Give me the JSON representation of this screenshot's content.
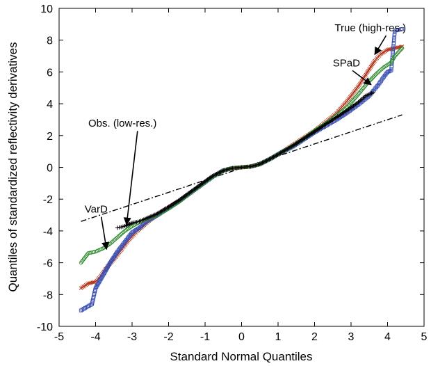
{
  "chart_data": {
    "type": "scatter",
    "title": "",
    "xlabel": "Standard Normal Quantiles",
    "ylabel": "Quantiles of standardized reflectivity derivatives",
    "xlim": [
      -5,
      5
    ],
    "ylim": [
      -10,
      10
    ],
    "xticks": [
      -5,
      -4,
      -3,
      -2,
      -1,
      0,
      1,
      2,
      3,
      4,
      5
    ],
    "yticks": [
      -10,
      -8,
      -6,
      -4,
      -2,
      0,
      2,
      4,
      6,
      8,
      10
    ],
    "grid": false,
    "legend": "none",
    "reference_line": {
      "style": "dash-dot",
      "color": "#000000",
      "points": [
        [
          -4.4,
          -3.4
        ],
        [
          4.4,
          3.3
        ]
      ]
    },
    "series": [
      {
        "name": "True (high-res.)",
        "marker": "x-line",
        "color": "#b5341a",
        "points": [
          [
            -4.4,
            -7.6
          ],
          [
            -4.2,
            -7.3
          ],
          [
            -4.0,
            -7.2
          ],
          [
            -3.85,
            -6.8
          ],
          [
            -3.7,
            -6.3
          ],
          [
            -3.5,
            -5.8
          ],
          [
            -3.3,
            -5.2
          ],
          [
            -3.1,
            -4.6
          ],
          [
            -2.9,
            -4.1
          ],
          [
            -2.7,
            -3.7
          ],
          [
            -2.5,
            -3.3
          ],
          [
            -2.3,
            -2.95
          ],
          [
            -2.0,
            -2.5
          ],
          [
            -1.7,
            -2.1
          ],
          [
            -1.4,
            -1.6
          ],
          [
            -1.1,
            -1.1
          ],
          [
            -0.8,
            -0.6
          ],
          [
            -0.5,
            -0.2
          ],
          [
            -0.25,
            -0.05
          ],
          [
            0,
            0
          ],
          [
            0.25,
            0.05
          ],
          [
            0.5,
            0.2
          ],
          [
            0.8,
            0.55
          ],
          [
            1.1,
            0.95
          ],
          [
            1.4,
            1.4
          ],
          [
            1.7,
            1.85
          ],
          [
            2.0,
            2.3
          ],
          [
            2.3,
            2.85
          ],
          [
            2.6,
            3.4
          ],
          [
            2.9,
            4.2
          ],
          [
            3.2,
            5.1
          ],
          [
            3.45,
            6.0
          ],
          [
            3.65,
            6.7
          ],
          [
            3.8,
            7.1
          ],
          [
            4.0,
            7.4
          ],
          [
            4.2,
            7.5
          ],
          [
            4.4,
            7.6
          ]
        ]
      },
      {
        "name": "",
        "marker": "square",
        "color": "#3a4fb0",
        "points": [
          [
            -4.4,
            -9.0
          ],
          [
            -4.1,
            -8.6
          ],
          [
            -4.0,
            -7.6
          ],
          [
            -3.8,
            -6.8
          ],
          [
            -3.6,
            -6.0
          ],
          [
            -3.4,
            -5.3
          ],
          [
            -3.2,
            -4.7
          ],
          [
            -3.0,
            -4.1
          ],
          [
            -2.8,
            -3.8
          ],
          [
            -2.6,
            -3.4
          ],
          [
            -2.3,
            -3.0
          ],
          [
            -2.0,
            -2.55
          ],
          [
            -1.7,
            -2.1
          ],
          [
            -1.4,
            -1.6
          ],
          [
            -1.1,
            -1.1
          ],
          [
            -0.8,
            -0.6
          ],
          [
            -0.5,
            -0.2
          ],
          [
            -0.25,
            -0.05
          ],
          [
            0,
            0
          ],
          [
            0.25,
            0.05
          ],
          [
            0.5,
            0.2
          ],
          [
            0.8,
            0.55
          ],
          [
            1.1,
            0.95
          ],
          [
            1.4,
            1.3
          ],
          [
            1.7,
            1.75
          ],
          [
            2.0,
            2.2
          ],
          [
            2.3,
            2.6
          ],
          [
            2.6,
            3.0
          ],
          [
            2.9,
            3.45
          ],
          [
            3.2,
            3.95
          ],
          [
            3.5,
            4.5
          ],
          [
            3.75,
            5.2
          ],
          [
            3.9,
            5.7
          ],
          [
            4.0,
            6.0
          ],
          [
            4.1,
            6.1
          ],
          [
            4.2,
            8.6
          ],
          [
            4.4,
            8.7
          ]
        ]
      },
      {
        "name": "SPaD",
        "marker": "circle",
        "color": "#2e8b2e",
        "points": [
          [
            -4.4,
            -6.0
          ],
          [
            -4.2,
            -5.4
          ],
          [
            -4.0,
            -5.3
          ],
          [
            -3.8,
            -5.1
          ],
          [
            -3.6,
            -4.8
          ],
          [
            -3.4,
            -4.4
          ],
          [
            -3.2,
            -4.0
          ],
          [
            -3.0,
            -3.7
          ],
          [
            -2.8,
            -3.45
          ],
          [
            -2.6,
            -3.25
          ],
          [
            -2.3,
            -3.0
          ],
          [
            -2.0,
            -2.6
          ],
          [
            -1.7,
            -2.15
          ],
          [
            -1.4,
            -1.6
          ],
          [
            -1.1,
            -1.1
          ],
          [
            -0.8,
            -0.6
          ],
          [
            -0.5,
            -0.2
          ],
          [
            -0.25,
            -0.05
          ],
          [
            0,
            0
          ],
          [
            0.25,
            0.05
          ],
          [
            0.5,
            0.2
          ],
          [
            0.8,
            0.55
          ],
          [
            1.1,
            0.95
          ],
          [
            1.4,
            1.35
          ],
          [
            1.7,
            1.8
          ],
          [
            2.0,
            2.3
          ],
          [
            2.3,
            2.75
          ],
          [
            2.6,
            3.25
          ],
          [
            2.9,
            3.8
          ],
          [
            3.2,
            4.6
          ],
          [
            3.45,
            5.3
          ],
          [
            3.7,
            5.9
          ],
          [
            3.9,
            6.3
          ],
          [
            4.1,
            6.6
          ],
          [
            4.2,
            7.0
          ],
          [
            4.4,
            7.5
          ]
        ]
      },
      {
        "name": "",
        "marker": "plus",
        "color": "#000000",
        "points": [
          [
            -3.4,
            -3.8
          ],
          [
            -3.3,
            -3.75
          ],
          [
            -3.2,
            -3.7
          ],
          [
            -3.1,
            -3.6
          ],
          [
            -3.0,
            -3.5
          ],
          [
            -2.8,
            -3.4
          ],
          [
            -2.6,
            -3.2
          ],
          [
            -2.3,
            -2.9
          ],
          [
            -2.0,
            -2.5
          ],
          [
            -1.7,
            -2.05
          ],
          [
            -1.4,
            -1.55
          ],
          [
            -1.1,
            -1.05
          ],
          [
            -0.8,
            -0.55
          ],
          [
            -0.5,
            -0.2
          ],
          [
            -0.25,
            -0.05
          ],
          [
            0,
            0
          ],
          [
            0.25,
            0.05
          ],
          [
            0.5,
            0.2
          ],
          [
            0.8,
            0.55
          ],
          [
            1.1,
            0.95
          ],
          [
            1.4,
            1.35
          ],
          [
            1.7,
            1.8
          ],
          [
            2.0,
            2.25
          ],
          [
            2.3,
            2.7
          ],
          [
            2.6,
            3.15
          ],
          [
            2.9,
            3.6
          ],
          [
            3.2,
            4.1
          ],
          [
            3.4,
            4.5
          ],
          [
            3.6,
            4.7
          ]
        ]
      }
    ],
    "annotations": [
      {
        "text": "True (high-res.)",
        "label_at": [
          2.55,
          8.55
        ],
        "arrow_to": [
          3.65,
          7.1
        ]
      },
      {
        "text": "SPaD",
        "label_at": [
          2.5,
          6.35
        ],
        "arrow_to": [
          3.55,
          5.2
        ]
      },
      {
        "text": "Obs. (low-res.)",
        "label_at": [
          -4.2,
          2.55
        ],
        "arrow_to": [
          -3.15,
          -3.6
        ]
      },
      {
        "text": "VarD",
        "label_at": [
          -4.3,
          -2.85
        ],
        "arrow_to": [
          -3.7,
          -5.15
        ]
      }
    ]
  }
}
